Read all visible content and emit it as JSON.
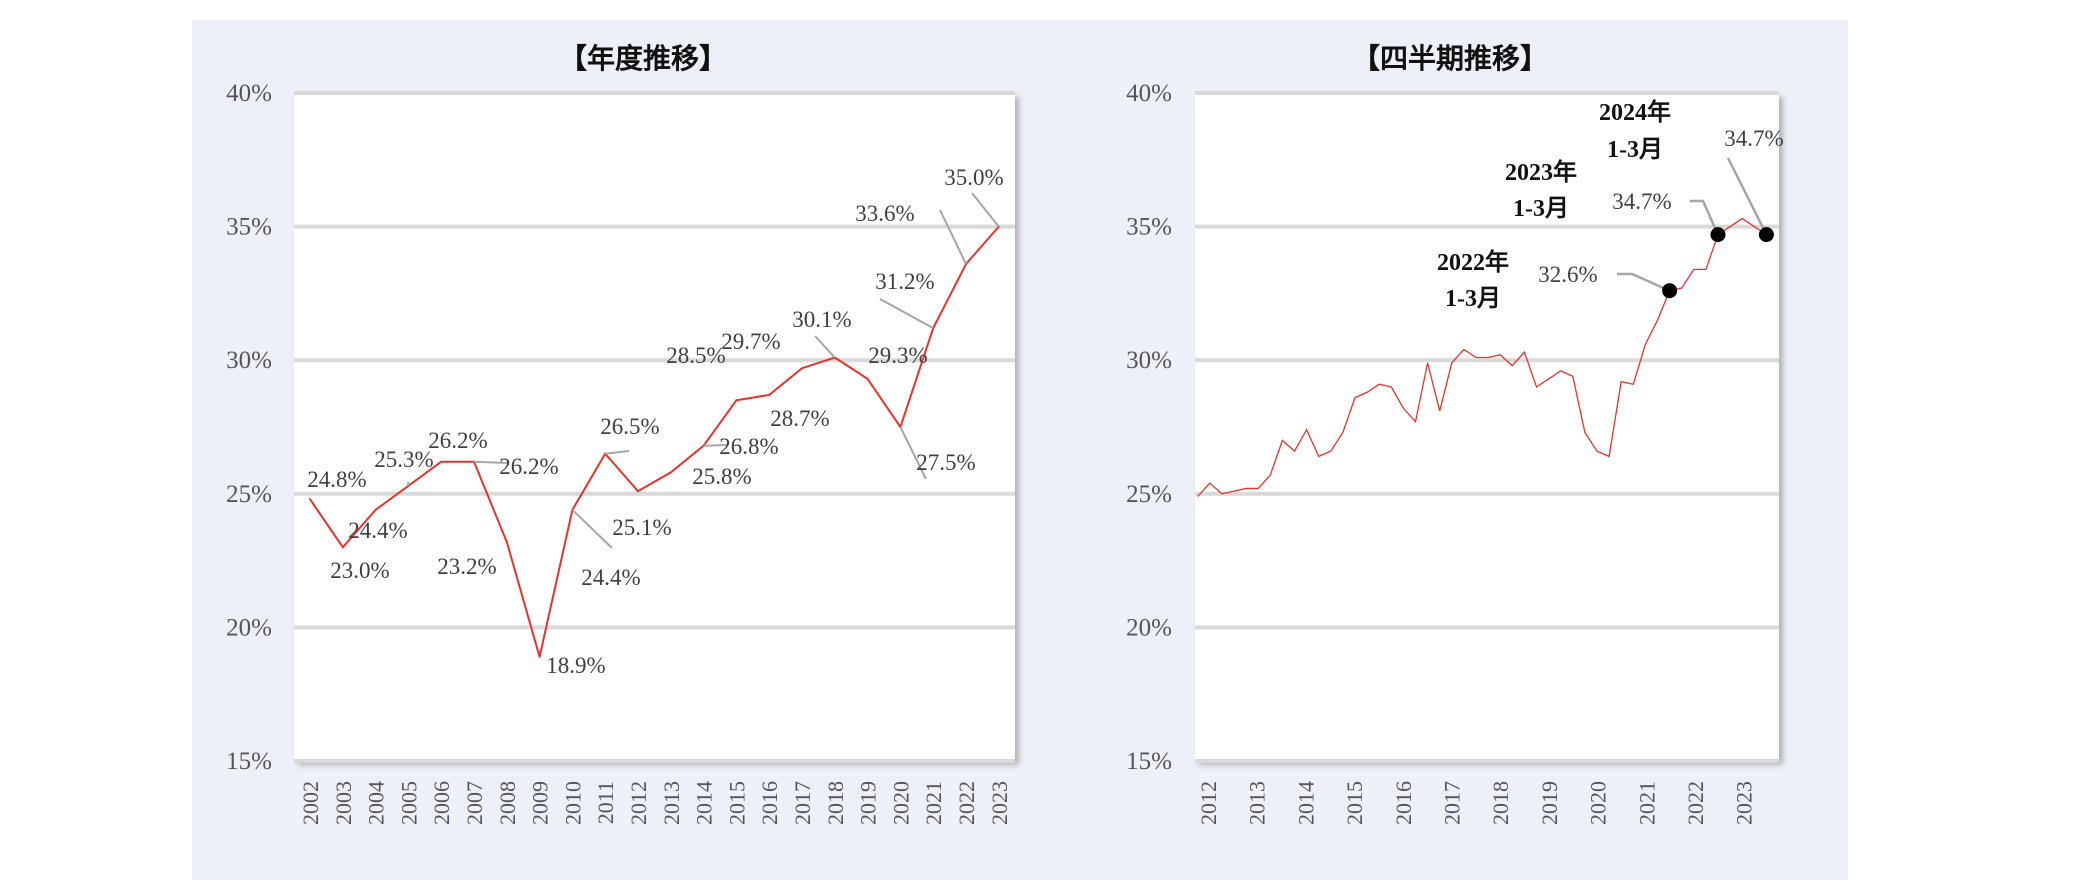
{
  "colors": {
    "background": "#edf0f6",
    "plot": "#ffffff",
    "line": "#e8322b",
    "grid": "#d9d9d9",
    "leader": "#a6a6a6",
    "marker": "#000000"
  },
  "chart_data": [
    {
      "type": "line",
      "title": "【年度推移】",
      "categories": [
        "2002",
        "2003",
        "2004",
        "2005",
        "2006",
        "2007",
        "2008",
        "2009",
        "2010",
        "2011",
        "2012",
        "2013",
        "2014",
        "2015",
        "2016",
        "2017",
        "2018",
        "2019",
        "2020",
        "2021",
        "2022",
        "2023"
      ],
      "values": [
        24.8,
        23.0,
        24.4,
        25.3,
        26.2,
        26.2,
        23.2,
        18.9,
        24.4,
        26.5,
        25.1,
        25.8,
        26.8,
        28.5,
        28.7,
        29.7,
        30.1,
        29.3,
        27.5,
        31.2,
        33.6,
        35.0
      ],
      "data_labels": [
        "24.8%",
        "23.0%",
        "24.4%",
        "25.3%",
        "26.2%",
        "26.2%",
        "23.2%",
        "18.9%",
        "24.4%",
        "26.5%",
        "25.1%",
        "25.8%",
        "26.8%",
        "28.5%",
        "28.7%",
        "29.7%",
        "30.1%",
        "29.3%",
        "27.5%",
        "31.2%",
        "33.6%",
        "35.0%"
      ],
      "ylim": [
        15,
        40
      ],
      "yticks": [
        "15%",
        "20%",
        "25%",
        "30%",
        "35%",
        "40%"
      ],
      "grid": true
    },
    {
      "type": "line",
      "title": "【四半期推移】",
      "x_tick_labels": [
        "2012",
        "2013",
        "2014",
        "2015",
        "2016",
        "2017",
        "2018",
        "2019",
        "2020",
        "2021",
        "2022",
        "2023"
      ],
      "values": [
        24.9,
        25.4,
        25.0,
        25.1,
        25.2,
        25.2,
        25.7,
        27.0,
        26.6,
        27.4,
        26.4,
        26.6,
        27.3,
        28.6,
        28.8,
        29.1,
        29.0,
        28.2,
        27.7,
        29.9,
        28.1,
        29.9,
        30.4,
        30.1,
        30.1,
        30.2,
        29.8,
        30.3,
        29.0,
        29.3,
        29.6,
        29.4,
        27.3,
        26.6,
        26.4,
        29.2,
        29.1,
        30.6,
        31.5,
        32.6,
        32.7,
        33.4,
        33.4,
        34.7,
        35.0,
        35.3,
        35.0,
        34.7
      ],
      "ylim": [
        15,
        40
      ],
      "yticks": [
        "15%",
        "20%",
        "25%",
        "30%",
        "35%",
        "40%"
      ],
      "grid": true,
      "annotations": [
        {
          "index": 39,
          "value_label": "32.6%",
          "period_line1": "2022年",
          "period_line2": "1-3月"
        },
        {
          "index": 43,
          "value_label": "34.7%",
          "period_line1": "2023年",
          "period_line2": "1-3月"
        },
        {
          "index": 47,
          "value_label": "34.7%",
          "period_line1": "2024年",
          "period_line2": "1-3月"
        }
      ]
    }
  ]
}
